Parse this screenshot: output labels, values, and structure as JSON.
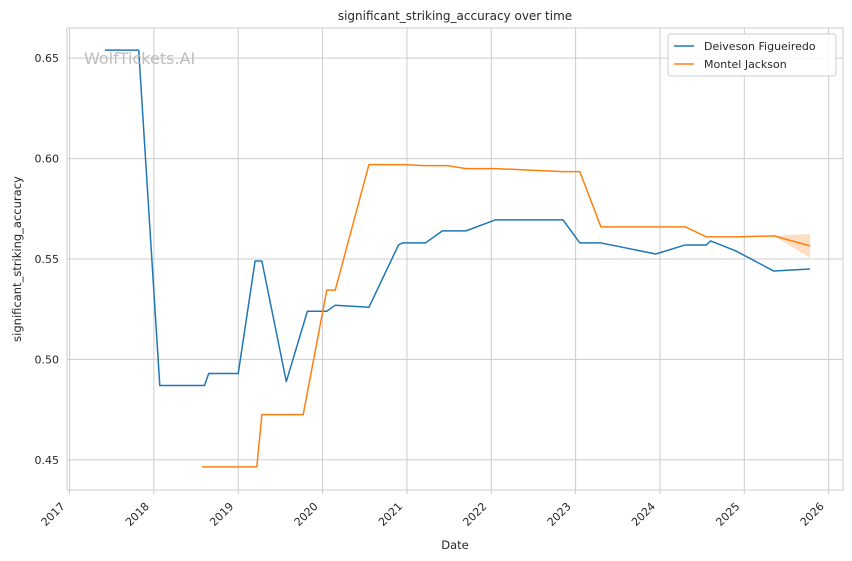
{
  "chart_data": {
    "type": "line",
    "title": "significant_striking_accuracy over time",
    "xlabel": "Date",
    "ylabel": "significant_striking_accuracy",
    "watermark": "WolfTickets.AI",
    "x_ticks": [
      "2017",
      "2018",
      "2019",
      "2020",
      "2021",
      "2022",
      "2023",
      "2024",
      "2025",
      "2026"
    ],
    "y_ticks": [
      "0.45",
      "0.50",
      "0.55",
      "0.60",
      "0.65"
    ],
    "xlim": [
      2016.97,
      2026.17
    ],
    "ylim": [
      0.435,
      0.665
    ],
    "grid": true,
    "legend_position": "top-right",
    "series": [
      {
        "name": "Deiveson Figueiredo",
        "color": "#1f77b4",
        "x": [
          2017.42,
          2017.82,
          2018.07,
          2018.6,
          2018.65,
          2019.0,
          2019.2,
          2019.28,
          2019.57,
          2019.82,
          2020.05,
          2020.15,
          2020.55,
          2020.9,
          2020.95,
          2021.22,
          2021.42,
          2021.7,
          2022.05,
          2022.85,
          2023.05,
          2023.3,
          2023.95,
          2024.3,
          2024.55,
          2024.6,
          2024.9,
          2025.35,
          2025.78
        ],
        "y": [
          0.654,
          0.654,
          0.487,
          0.487,
          0.493,
          0.493,
          0.549,
          0.549,
          0.489,
          0.524,
          0.524,
          0.527,
          0.526,
          0.557,
          0.558,
          0.558,
          0.564,
          0.564,
          0.5695,
          0.5695,
          0.558,
          0.558,
          0.5525,
          0.557,
          0.557,
          0.559,
          0.554,
          0.544,
          0.545
        ]
      },
      {
        "name": "Montel Jackson",
        "color": "#ff7f0e",
        "x": [
          2018.57,
          2019.22,
          2019.28,
          2019.77,
          2020.05,
          2020.15,
          2020.55,
          2020.95,
          2021.2,
          2021.48,
          2021.7,
          2022.05,
          2022.85,
          2023.05,
          2023.3,
          2024.3,
          2024.55,
          2024.9,
          2025.35,
          2025.78
        ],
        "y": [
          0.4465,
          0.4465,
          0.4725,
          0.4725,
          0.5345,
          0.5345,
          0.597,
          0.597,
          0.5965,
          0.5965,
          0.595,
          0.595,
          0.5935,
          0.5935,
          0.566,
          0.566,
          0.561,
          0.561,
          0.5615,
          0.5565
        ],
        "band": {
          "x": [
            2025.35,
            2025.78
          ],
          "lower": [
            0.5615,
            0.5505
          ],
          "upper": [
            0.5615,
            0.5625
          ]
        }
      }
    ]
  }
}
